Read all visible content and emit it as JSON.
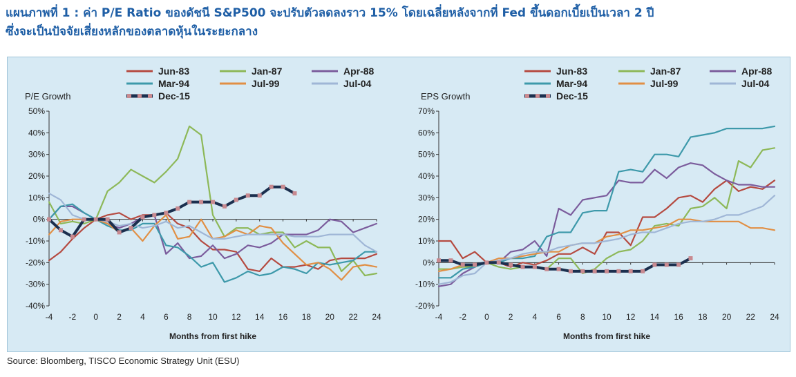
{
  "title_line1": "แผนภาพที่ 1 : ค่า P/E Ratio ของดัชนี S&P500 จะปรับตัวลดลงราว 15% โดยเฉลี่ยหลังจากที่ Fed ขึ้นดอกเบี้ยเป็นเวลา 2 ปี",
  "title_line2": "ซึ่งจะเป็นปัจจัยเสี่ยงหลักของตลาดหุ้นในระยะกลาง",
  "source": "Source: Bloomberg, TISCO Economic Strategy Unit (ESU)",
  "colors": {
    "Jun-83": "#b54a40",
    "Jan-87": "#8db858",
    "Apr-88": "#7b5c9c",
    "Mar-94": "#3d99aa",
    "Jul-99": "#e18f44",
    "Jul-04": "#9fb6d6",
    "Dec-15": "#1b2f4e",
    "Dec-15-marker": "#c88a90",
    "panel_bg": "#d7eaf4",
    "title": "#1f5fa6"
  },
  "chart_data": [
    {
      "type": "line",
      "title": "",
      "ylabel": "P/E Growth",
      "xlabel": "Months from first hike",
      "xlim": [
        -4,
        24
      ],
      "ylim": [
        -40,
        50
      ],
      "xticks": [
        -4,
        -2,
        0,
        2,
        4,
        6,
        8,
        10,
        12,
        14,
        16,
        18,
        20,
        22,
        24
      ],
      "xtick_labels": [
        "-4",
        "-2",
        "0",
        "2",
        "4",
        "6",
        "8",
        "10",
        "12",
        "14",
        "16",
        "18",
        "20",
        "22",
        "24"
      ],
      "yticks": [
        -40,
        -30,
        -20,
        -10,
        0,
        10,
        20,
        30,
        40,
        50
      ],
      "ytick_labels": [
        "-40%",
        "-30%",
        "-20%",
        "-10%",
        "0%",
        "10%",
        "20%",
        "30%",
        "40%",
        "50%"
      ],
      "legend": "top",
      "grid": false,
      "series": [
        {
          "name": "Jun-83",
          "x": [
            -4,
            -3,
            -2,
            -1,
            0,
            1,
            2,
            3,
            4,
            5,
            6,
            7,
            8,
            9,
            10,
            11,
            12,
            13,
            14,
            15,
            16,
            17,
            18,
            19,
            20,
            21,
            22,
            23,
            24
          ],
          "y": [
            -19,
            -15,
            -9,
            -4,
            0,
            2,
            3,
            0,
            2,
            2,
            3,
            -2,
            -4,
            -10,
            -14,
            -14,
            -15,
            -23,
            -24,
            -18,
            -22,
            -22,
            -21,
            -23,
            -19,
            -18,
            -18,
            -18,
            -16
          ]
        },
        {
          "name": "Jan-87",
          "x": [
            -4,
            -3,
            -2,
            -1,
            0,
            1,
            2,
            3,
            4,
            5,
            6,
            7,
            8,
            9,
            10,
            11,
            12,
            13,
            14,
            15,
            16,
            17,
            18,
            19,
            20,
            21,
            22,
            23,
            24
          ],
          "y": [
            8,
            -2,
            -1,
            -2,
            0,
            13,
            17,
            23,
            20,
            17,
            22,
            28,
            43,
            39,
            2,
            -8,
            -4,
            -4,
            -7,
            -6,
            -6,
            -13,
            -10,
            -13,
            -13,
            -24,
            -19,
            -26,
            -25
          ]
        },
        {
          "name": "Apr-88",
          "x": [
            -4,
            -3,
            -2,
            -1,
            0,
            1,
            2,
            3,
            4,
            5,
            6,
            7,
            8,
            9,
            10,
            11,
            12,
            13,
            14,
            15,
            16,
            17,
            18,
            19,
            20,
            21,
            22,
            23,
            24
          ],
          "y": [
            0,
            6,
            6,
            3,
            0,
            -2,
            -4,
            -2,
            1,
            2,
            -16,
            -11,
            -18,
            -17,
            -12,
            -18,
            -16,
            -12,
            -13,
            -11,
            -7,
            -7,
            -7,
            -5,
            0,
            -1,
            -6,
            -4,
            -2
          ]
        },
        {
          "name": "Mar-94",
          "x": [
            -4,
            -3,
            -2,
            -1,
            0,
            1,
            2,
            3,
            4,
            5,
            6,
            7,
            8,
            9,
            10,
            11,
            12,
            13,
            14,
            15,
            16,
            17,
            18,
            19,
            20,
            21,
            22,
            23,
            24
          ],
          "y": [
            0,
            6,
            7,
            3,
            0,
            -3,
            -5,
            -5,
            -2,
            -2,
            -12,
            -13,
            -17,
            -22,
            -20,
            -29,
            -27,
            -24,
            -26,
            -25,
            -22,
            -23,
            -25,
            -20,
            -21,
            -20,
            -19,
            -15,
            -15
          ]
        },
        {
          "name": "Jul-99",
          "x": [
            -4,
            -3,
            -2,
            -1,
            0,
            1,
            2,
            3,
            4,
            5,
            6,
            7,
            8,
            9,
            10,
            11,
            12,
            13,
            14,
            15,
            16,
            17,
            18,
            19,
            20,
            21,
            22,
            23,
            24
          ],
          "y": [
            -7,
            -1,
            0,
            0,
            0,
            -2,
            -6,
            -4,
            -10,
            -3,
            2,
            -9,
            -8,
            0,
            -9,
            -8,
            -5,
            -7,
            -3,
            -4,
            -11,
            -16,
            -21,
            -20,
            -23,
            -28,
            -22,
            -21,
            -22
          ]
        },
        {
          "name": "Jul-04",
          "x": [
            -4,
            -3,
            -2,
            -1,
            0,
            1,
            2,
            3,
            4,
            5,
            6,
            7,
            8,
            9,
            10,
            11,
            12,
            13,
            14,
            15,
            16,
            17,
            18,
            19,
            20,
            21,
            22,
            23,
            24
          ],
          "y": [
            12,
            9,
            2,
            0,
            0,
            -1,
            -3,
            -2,
            -4,
            -3,
            -1,
            -4,
            -3,
            -6,
            -9,
            -9,
            -8,
            -7,
            -7,
            -7,
            -7,
            -8,
            -8,
            -8,
            -7,
            -7,
            -7,
            -12,
            -15
          ]
        },
        {
          "name": "Dec-15",
          "x": [
            -4,
            -3,
            -2,
            -1,
            0,
            1,
            2,
            3,
            4,
            5,
            6,
            7,
            8,
            9,
            10,
            11,
            12,
            13,
            14,
            15,
            16,
            17
          ],
          "y": [
            0,
            -5,
            -8,
            0,
            0,
            0,
            -6,
            -4,
            1,
            2,
            3,
            5,
            8,
            8,
            8,
            6,
            9,
            11,
            11,
            15,
            15,
            12
          ]
        }
      ]
    },
    {
      "type": "line",
      "title": "",
      "ylabel": "EPS Growth",
      "xlabel": "Months from first hike",
      "xlim": [
        -4,
        24
      ],
      "ylim": [
        -20,
        70
      ],
      "xticks": [
        -4,
        -2,
        0,
        2,
        4,
        6,
        8,
        10,
        12,
        14,
        16,
        18,
        20,
        22,
        24
      ],
      "xtick_labels": [
        "-4",
        "-2",
        "0",
        "2",
        "4",
        "6",
        "8",
        "10",
        "12",
        "14",
        "16",
        "18",
        "20",
        "22",
        "24"
      ],
      "yticks": [
        -20,
        -10,
        0,
        10,
        20,
        30,
        40,
        50,
        60,
        70
      ],
      "ytick_labels": [
        "-20%",
        "-10%",
        "0%",
        "10%",
        "20%",
        "30%",
        "40%",
        "50%",
        "60%",
        "70%"
      ],
      "legend": "top",
      "grid": false,
      "series": [
        {
          "name": "Jun-83",
          "x": [
            -4,
            -3,
            -2,
            -1,
            0,
            1,
            2,
            3,
            4,
            5,
            6,
            7,
            8,
            9,
            10,
            11,
            12,
            13,
            14,
            15,
            16,
            17,
            18,
            19,
            20,
            21,
            22,
            23,
            24
          ],
          "y": [
            10,
            10,
            2,
            5,
            0,
            0,
            -2,
            0,
            -1,
            1,
            4,
            4,
            7,
            4,
            14,
            14,
            8,
            21,
            21,
            25,
            30,
            31,
            28,
            34,
            38,
            33,
            35,
            34,
            38
          ]
        },
        {
          "name": "Jan-87",
          "x": [
            -4,
            -3,
            -2,
            -1,
            0,
            1,
            2,
            3,
            4,
            5,
            6,
            7,
            8,
            9,
            10,
            11,
            12,
            13,
            14,
            15,
            16,
            17,
            18,
            19,
            20,
            21,
            22,
            23,
            24
          ],
          "y": [
            -3,
            -3,
            -2,
            -2,
            0,
            -2,
            -3,
            -2,
            -2,
            -3,
            2,
            2,
            -5,
            -3,
            2,
            5,
            6,
            10,
            17,
            18,
            17,
            25,
            26,
            30,
            25,
            47,
            44,
            52,
            53
          ]
        },
        {
          "name": "Apr-88",
          "x": [
            -4,
            -3,
            -2,
            -1,
            0,
            1,
            2,
            3,
            4,
            5,
            6,
            7,
            8,
            9,
            10,
            11,
            12,
            13,
            14,
            15,
            16,
            17,
            18,
            19,
            20,
            21,
            22,
            23,
            24
          ],
          "y": [
            -11,
            -10,
            -5,
            -2,
            0,
            0,
            5,
            6,
            10,
            3,
            25,
            22,
            29,
            30,
            31,
            38,
            37,
            37,
            43,
            39,
            44,
            46,
            45,
            41,
            38,
            36,
            36,
            35,
            35
          ]
        },
        {
          "name": "Mar-94",
          "x": [
            -4,
            -3,
            -2,
            -1,
            0,
            1,
            2,
            3,
            4,
            5,
            6,
            7,
            8,
            9,
            10,
            11,
            12,
            13,
            14,
            15,
            16,
            17,
            18,
            19,
            20,
            21,
            22,
            23,
            24
          ],
          "y": [
            -7,
            -7,
            -3,
            -2,
            0,
            0,
            2,
            2,
            3,
            12,
            14,
            14,
            23,
            24,
            24,
            42,
            43,
            42,
            50,
            50,
            49,
            58,
            59,
            60,
            62,
            62,
            62,
            62,
            63
          ]
        },
        {
          "name": "Jul-99",
          "x": [
            -4,
            -3,
            -2,
            -1,
            0,
            1,
            2,
            3,
            4,
            5,
            6,
            7,
            8,
            9,
            10,
            11,
            12,
            13,
            14,
            15,
            16,
            17,
            18,
            19,
            20,
            21,
            22,
            23,
            24
          ],
          "y": [
            -4,
            -3,
            -1,
            -1,
            0,
            2,
            2,
            3,
            4,
            5,
            5,
            8,
            9,
            9,
            12,
            13,
            15,
            15,
            16,
            17,
            20,
            20,
            19,
            19,
            19,
            19,
            16,
            16,
            15
          ]
        },
        {
          "name": "Jul-04",
          "x": [
            -4,
            -3,
            -2,
            -1,
            0,
            1,
            2,
            3,
            4,
            5,
            6,
            7,
            8,
            9,
            10,
            11,
            12,
            13,
            14,
            15,
            16,
            17,
            18,
            19,
            20,
            21,
            22,
            23,
            24
          ],
          "y": [
            -10,
            -9,
            -6,
            -5,
            0,
            1,
            2,
            4,
            5,
            5,
            7,
            8,
            9,
            9,
            10,
            11,
            13,
            14,
            14,
            16,
            18,
            19,
            19,
            20,
            22,
            22,
            24,
            26,
            31
          ]
        },
        {
          "name": "Dec-15",
          "x": [
            -4,
            -3,
            -2,
            -1,
            0,
            1,
            2,
            3,
            4,
            5,
            6,
            7,
            8,
            9,
            10,
            11,
            12,
            13,
            14,
            15,
            16,
            17
          ],
          "y": [
            1,
            1,
            -1,
            -1,
            0,
            0,
            -1,
            -2,
            -2,
            -3,
            -3,
            -4,
            -4,
            -4,
            -4,
            -4,
            -4,
            -4,
            -1,
            -1,
            -1,
            2
          ]
        }
      ]
    }
  ]
}
